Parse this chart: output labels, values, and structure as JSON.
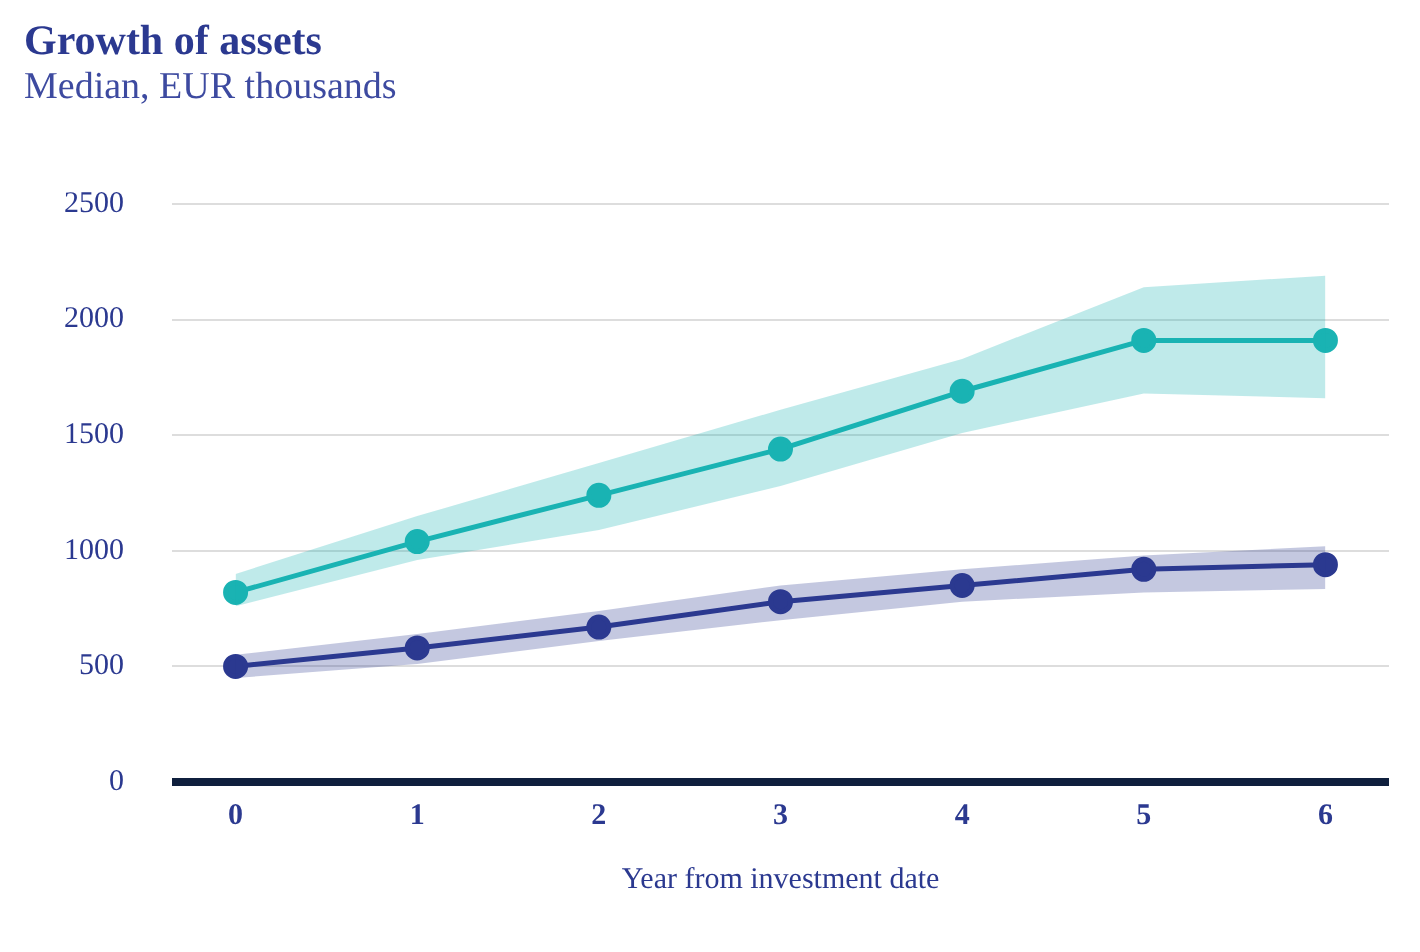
{
  "chart_data": {
    "type": "line",
    "title": "Growth of assets",
    "subtitle": "Median, EUR thousands",
    "xlabel": "Year from investment date",
    "x": [
      0,
      1,
      2,
      3,
      4,
      5,
      6
    ],
    "series": [
      {
        "color": "#1ab3b3",
        "values": [
          820,
          1040,
          1240,
          1440,
          1690,
          1910,
          1910
        ],
        "lower": [
          760,
          960,
          1090,
          1280,
          1510,
          1680,
          1660
        ],
        "upper": [
          900,
          1150,
          1380,
          1610,
          1830,
          2140,
          2190
        ]
      },
      {
        "color": "#2b3990",
        "values": [
          500,
          580,
          670,
          780,
          850,
          920,
          940
        ],
        "lower": [
          450,
          510,
          610,
          700,
          780,
          820,
          835
        ],
        "upper": [
          550,
          640,
          740,
          850,
          920,
          980,
          1020
        ]
      }
    ],
    "xlim": [
      -0.35,
      6.35
    ],
    "xticks": [
      0,
      1,
      2,
      3,
      4,
      5,
      6
    ],
    "ylim": [
      0,
      2500
    ],
    "yticks": [
      0,
      500,
      1000,
      1500,
      2000,
      2500
    ],
    "grid": "y",
    "legend": false,
    "marker": "circle",
    "line_style": "solid"
  }
}
